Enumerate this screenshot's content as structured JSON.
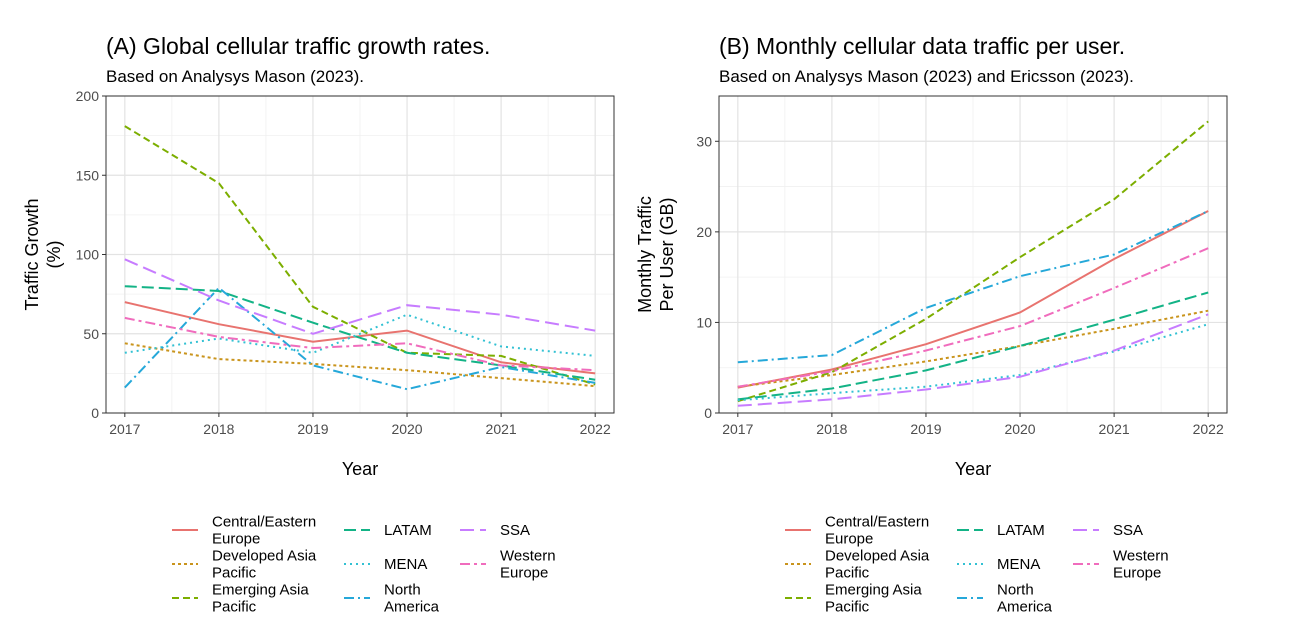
{
  "chart_data": [
    {
      "type": "line",
      "title": "(A) Global cellular traffic growth rates.",
      "subtitle": "Based on Analysys Mason (2023).",
      "xlabel": "Year",
      "ylabel": [
        "Traffic Growth",
        "(%)"
      ],
      "x": [
        2017,
        2018,
        2019,
        2020,
        2021,
        2022
      ],
      "xlim": [
        2016.8,
        2022.2
      ],
      "ylim": [
        0,
        200
      ],
      "yticks": [
        0,
        50,
        100,
        150,
        200
      ],
      "grid": true,
      "legend_position": "bottom",
      "series": [
        {
          "name": "Central/Eastern Europe",
          "values": [
            70,
            56,
            45,
            52,
            32,
            25
          ]
        },
        {
          "name": "Developed Asia Pacific",
          "values": [
            44,
            34,
            31,
            27,
            22,
            17
          ]
        },
        {
          "name": "Emerging Asia Pacific",
          "values": [
            181,
            145,
            67,
            38,
            36,
            18
          ]
        },
        {
          "name": "LATAM",
          "values": [
            80,
            77,
            57,
            38,
            30,
            21
          ]
        },
        {
          "name": "MENA",
          "values": [
            38,
            47,
            38,
            62,
            42,
            36
          ]
        },
        {
          "name": "North America",
          "values": [
            16,
            79,
            30,
            15,
            29,
            19
          ]
        },
        {
          "name": "SSA",
          "values": [
            97,
            71,
            50,
            68,
            62,
            52
          ]
        },
        {
          "name": "Western Europe",
          "values": [
            60,
            48,
            41,
            44,
            30,
            27
          ]
        }
      ]
    },
    {
      "type": "line",
      "title": "(B) Monthly cellular data traffic per user.",
      "subtitle": "Based on Analysys Mason (2023) and Ericsson (2023).",
      "xlabel": "Year",
      "ylabel": [
        "Monthly Traffic",
        "Per User (GB)"
      ],
      "x": [
        2017,
        2018,
        2019,
        2020,
        2021,
        2022
      ],
      "xlim": [
        2016.8,
        2022.2
      ],
      "ylim": [
        0,
        35
      ],
      "yticks": [
        0,
        10,
        20,
        30
      ],
      "grid": true,
      "legend_position": "bottom",
      "series": [
        {
          "name": "Central/Eastern Europe",
          "values": [
            2.8,
            4.8,
            7.6,
            11.1,
            17,
            22.3
          ]
        },
        {
          "name": "Developed Asia Pacific",
          "values": [
            2.9,
            4.2,
            5.7,
            7.4,
            9.3,
            11.3
          ]
        },
        {
          "name": "Emerging Asia Pacific",
          "values": [
            1.3,
            4.5,
            10.4,
            17.2,
            23.6,
            32.2
          ]
        },
        {
          "name": "LATAM",
          "values": [
            1.5,
            2.7,
            4.7,
            7.4,
            10.3,
            13.3
          ]
        },
        {
          "name": "MENA",
          "values": [
            1.4,
            2.2,
            2.9,
            4.2,
            6.8,
            9.8
          ]
        },
        {
          "name": "North America",
          "values": [
            5.6,
            6.4,
            11.6,
            15.1,
            17.5,
            22.3
          ]
        },
        {
          "name": "SSA",
          "values": [
            0.8,
            1.5,
            2.6,
            4.0,
            6.9,
            10.9
          ]
        },
        {
          "name": "Western Europe",
          "values": [
            2.9,
            4.6,
            6.9,
            9.6,
            13.8,
            18.2
          ]
        }
      ]
    }
  ],
  "legend": [
    {
      "lines": [
        "Central/Eastern",
        "Europe"
      ],
      "color": "#e8736f",
      "dash": "solid"
    },
    {
      "lines": [
        "Developed Asia",
        "Pacific"
      ],
      "color": "#c9941c",
      "dash": "dot-long"
    },
    {
      "lines": [
        "Emerging Asia",
        "Pacific"
      ],
      "color": "#7cae00",
      "dash": "dash"
    },
    {
      "lines": [
        "LATAM"
      ],
      "color": "#13b386",
      "dash": "longdash"
    },
    {
      "lines": [
        "MENA"
      ],
      "color": "#32c1d3",
      "dash": "dotted"
    },
    {
      "lines": [
        "North",
        "America"
      ],
      "color": "#25a8d9",
      "dash": "dashdot"
    },
    {
      "lines": [
        "SSA"
      ],
      "color": "#c77cff",
      "dash": "longdash2"
    },
    {
      "lines": [
        "Western",
        "Europe"
      ],
      "color": "#f06cbd",
      "dash": "twodash"
    }
  ]
}
